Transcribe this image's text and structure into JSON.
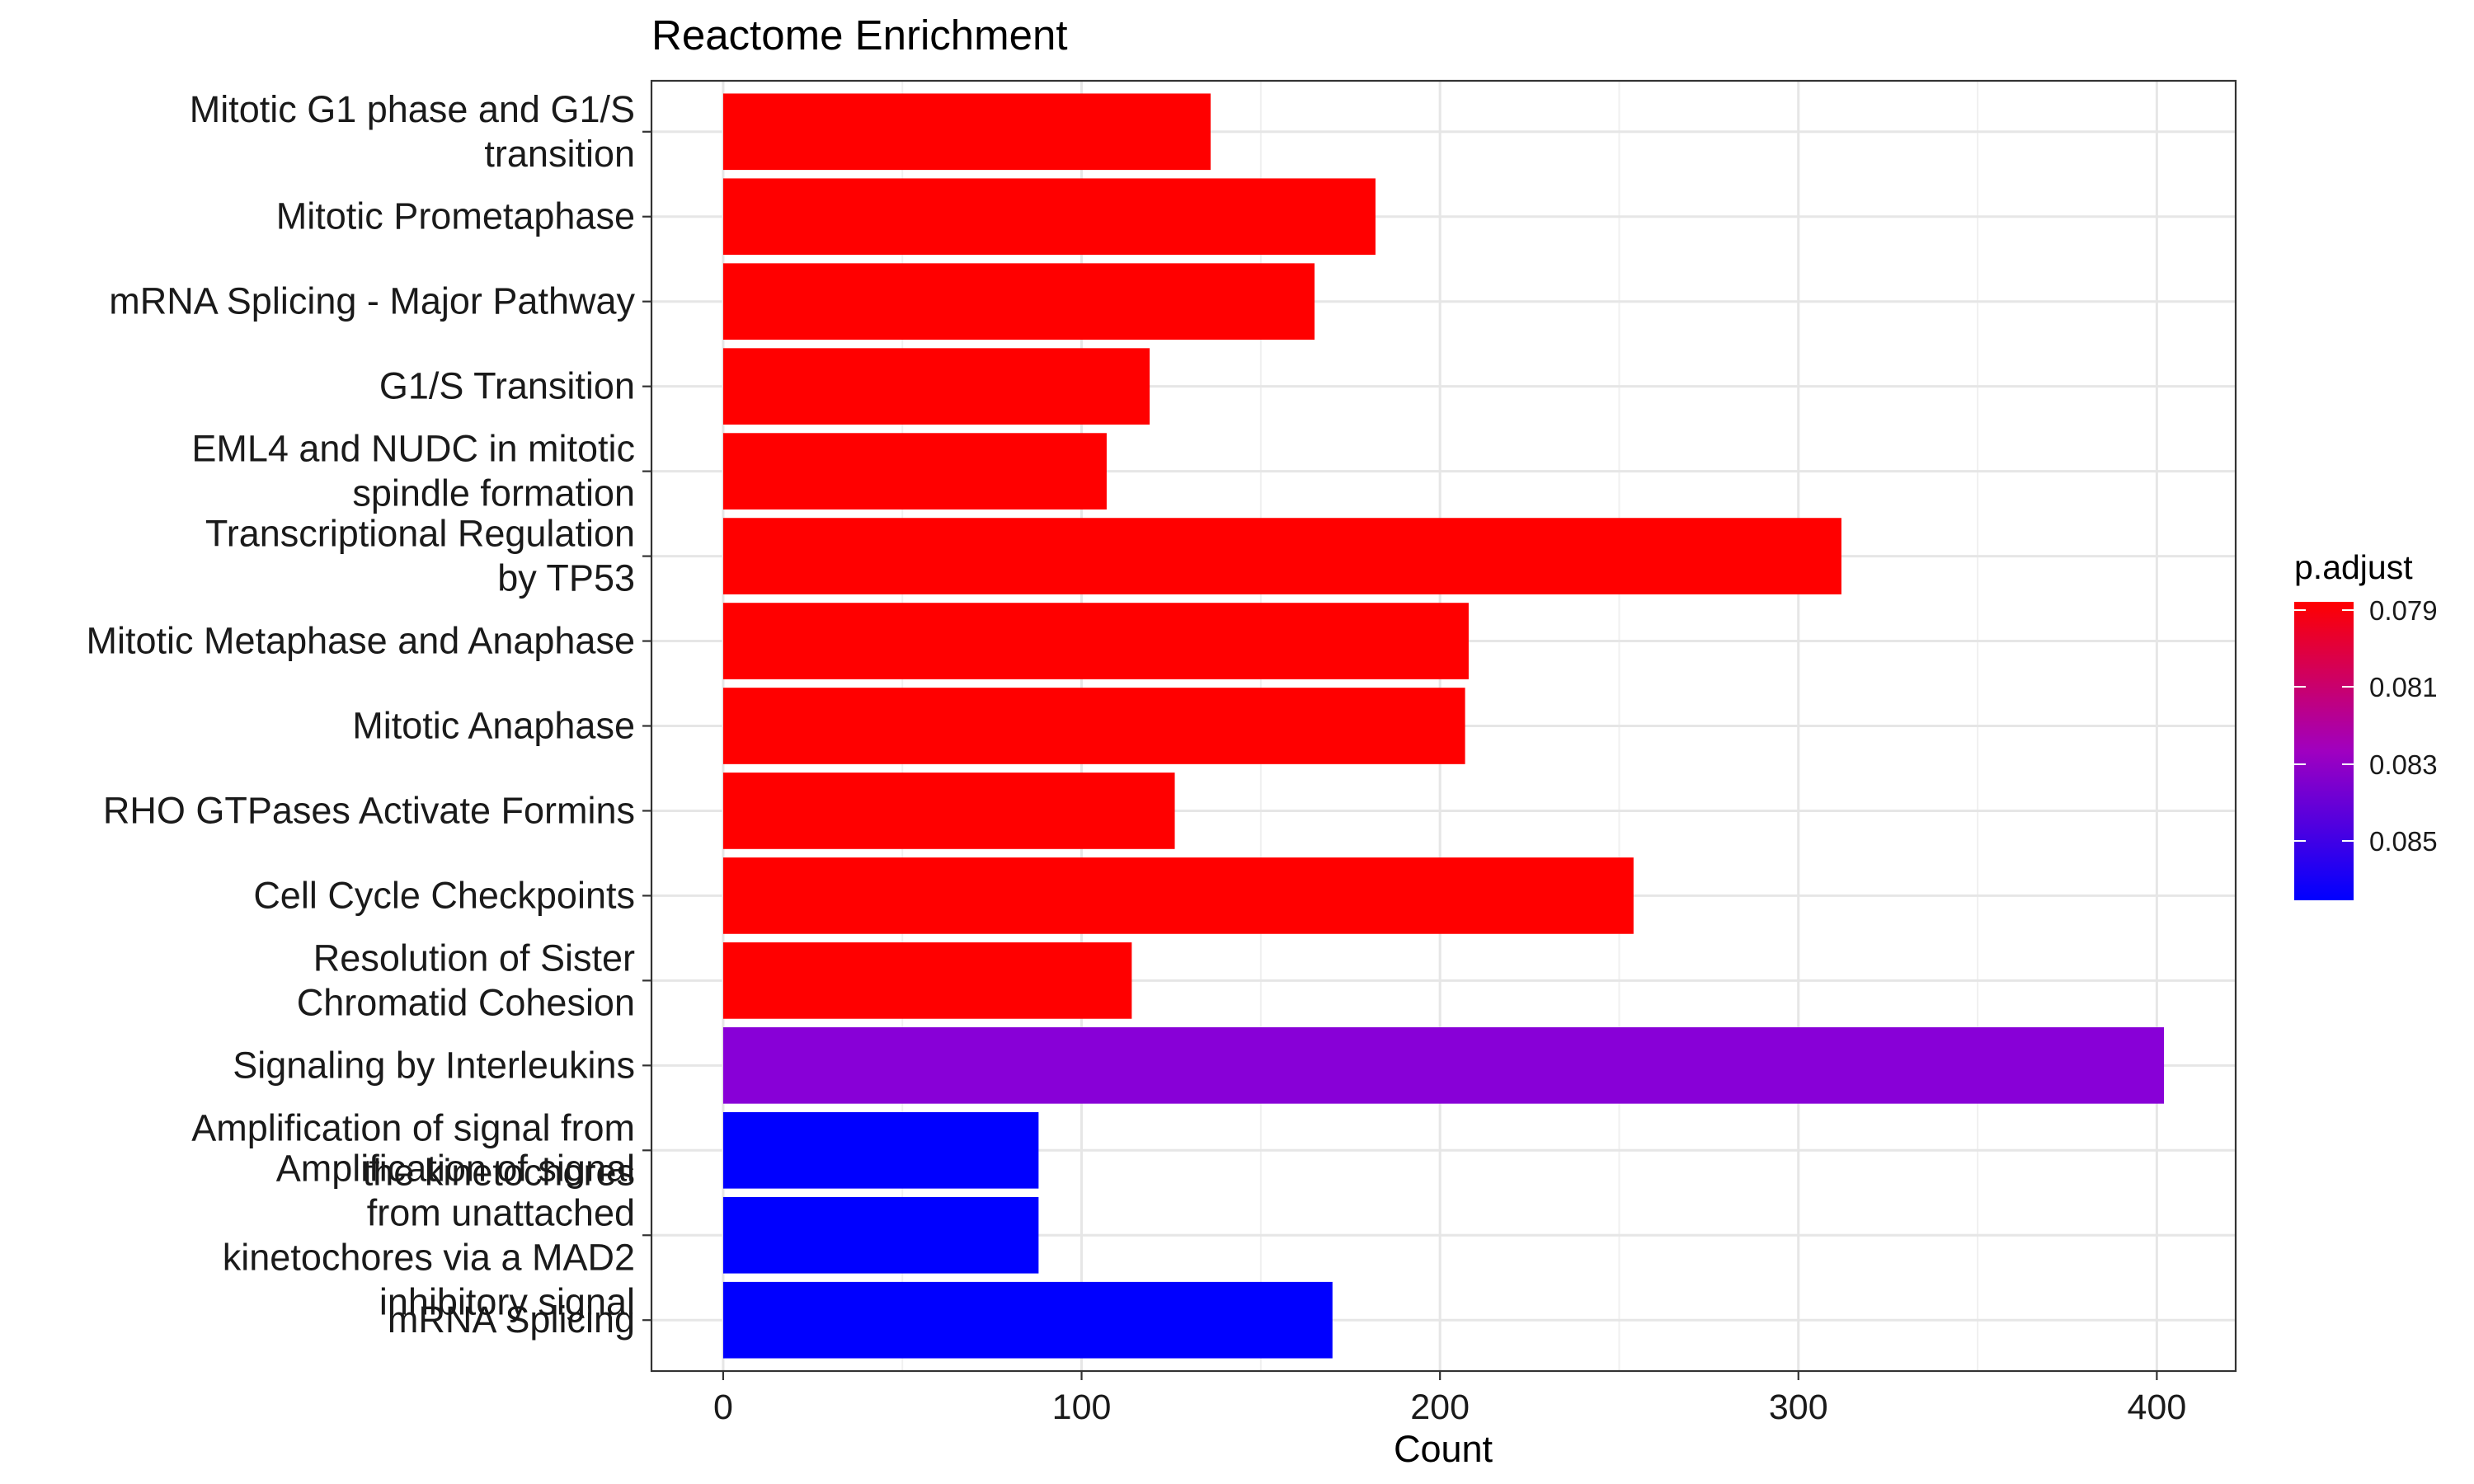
{
  "chart_data": {
    "type": "bar",
    "orientation": "horizontal",
    "title": "Reactome Enrichment",
    "xlabel": "Count",
    "ylabel": "",
    "xlim": [
      -20,
      422
    ],
    "xticks": [
      0,
      100,
      200,
      300,
      400
    ],
    "grid": true,
    "categories": [
      "Mitotic G1 phase and G1/S transition",
      "Mitotic Prometaphase",
      "mRNA Splicing - Major Pathway",
      "G1/S Transition",
      "EML4 and NUDC in mitotic spindle formation",
      "Transcriptional Regulation by TP53",
      "Mitotic Metaphase and Anaphase",
      "Mitotic Anaphase",
      "RHO GTPases Activate Formins",
      "Cell Cycle Checkpoints",
      "Resolution of Sister Chromatid Cohesion",
      "Signaling by Interleukins",
      "Amplification of signal from the kinetochores",
      "Amplification of signal from unattached kinetochores via a MAD2 inhibitory signal",
      "mRNA Splicing"
    ],
    "label_lines": [
      [
        "Mitotic G1 phase and G1/S",
        "transition"
      ],
      [
        "Mitotic Prometaphase"
      ],
      [
        "mRNA Splicing - Major Pathway"
      ],
      [
        "G1/S Transition"
      ],
      [
        "EML4 and NUDC in mitotic",
        "spindle formation"
      ],
      [
        "Transcriptional Regulation",
        "by TP53"
      ],
      [
        "Mitotic Metaphase and Anaphase"
      ],
      [
        "Mitotic Anaphase"
      ],
      [
        "RHO GTPases Activate Formins"
      ],
      [
        "Cell Cycle Checkpoints"
      ],
      [
        "Resolution of Sister",
        "Chromatid Cohesion"
      ],
      [
        "Signaling by Interleukins"
      ],
      [
        "Amplification of signal from",
        "the kinetochores"
      ],
      [
        "Amplification of signal",
        "from unattached",
        "kinetochores via a MAD2",
        "inhibitory signal"
      ],
      [
        "mRNA Splicing"
      ]
    ],
    "values": [
      136,
      182,
      165,
      119,
      107,
      312,
      208,
      207,
      126,
      254,
      114,
      402,
      88,
      88,
      170
    ],
    "colors": [
      "#ff0000",
      "#ff0000",
      "#ff0000",
      "#ff0000",
      "#ff0000",
      "#ff0000",
      "#ff0000",
      "#ff0000",
      "#ff0000",
      "#ff0000",
      "#ff0000",
      "#8800d7",
      "#0000ff",
      "#0000ff",
      "#0000ff"
    ],
    "legend": {
      "title": "p.adjust",
      "position": "right",
      "ticks": [
        "0.079",
        "0.081",
        "0.083",
        "0.085"
      ],
      "color_high": "#ff0000",
      "color_low": "#0000ff"
    }
  }
}
